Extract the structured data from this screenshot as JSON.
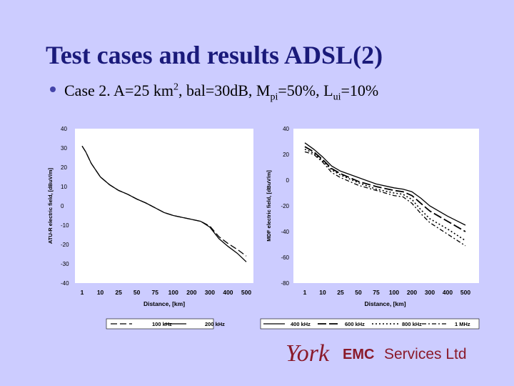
{
  "slide": {
    "title": "Test cases and results ADSL(2)",
    "bullet": {
      "p1": "Case 2. A=25 km",
      "sup1": "2",
      "p2": ", bal=30dB, M",
      "sub1": "pi",
      "p3": "=50%, L",
      "sub2": "ui",
      "p4": "=10%"
    }
  },
  "logo": {
    "york": "York",
    "emc": "EMC",
    "services": "Services Ltd",
    "color": "#8a1a2a"
  },
  "chart_data": [
    {
      "type": "line",
      "title": "",
      "xlabel": "Distance, [km]",
      "ylabel": "ATU-R electric field, [dBuV/m]",
      "ylim": [
        -40,
        40
      ],
      "yticks": [
        40,
        30,
        20,
        10,
        0,
        -10,
        -20,
        -30,
        -40
      ],
      "categories": [
        "1",
        "10",
        "25",
        "50",
        "75",
        "100",
        "200",
        "300",
        "400",
        "500"
      ],
      "grid": false,
      "legend_position": "bottom",
      "series": [
        {
          "name": "100 kHz",
          "style": "dashed",
          "x": [
            0,
            0.2,
            0.5,
            1,
            1.5,
            2,
            2.5,
            3,
            3.5,
            4,
            4.5,
            5,
            5.5,
            6,
            6.5,
            7,
            7.5,
            8,
            8.5,
            9
          ],
          "values": [
            31,
            28,
            22,
            15,
            11,
            8,
            6,
            3.5,
            1.5,
            -1,
            -3.5,
            -5,
            -6,
            -7,
            -8,
            -10.5,
            -16,
            -19.5,
            -22.5,
            -26
          ]
        },
        {
          "name": "200 kHz",
          "style": "solid",
          "x": [
            0,
            0.2,
            0.5,
            1,
            1.5,
            2,
            2.5,
            3,
            3.5,
            4,
            4.5,
            5,
            5.5,
            6,
            6.5,
            7,
            7.5,
            8,
            8.5,
            9
          ],
          "values": [
            31,
            28,
            22,
            15,
            11,
            8,
            6,
            3.5,
            1.5,
            -1,
            -3.5,
            -5,
            -6,
            -7,
            -8,
            -11,
            -17,
            -21,
            -24.5,
            -29
          ]
        }
      ]
    },
    {
      "type": "line",
      "title": "",
      "xlabel": "Distance, [km]",
      "ylabel": "MDF electric field, [dBuV/m]",
      "ylim": [
        -80,
        40
      ],
      "yticks": [
        40,
        20,
        0,
        -20,
        -40,
        -60,
        -80
      ],
      "categories": [
        "1",
        "10",
        "25",
        "50",
        "75",
        "100",
        "200",
        "300",
        "400",
        "500"
      ],
      "grid": false,
      "legend_position": "bottom",
      "series": [
        {
          "name": "400 kHz",
          "style": "solid",
          "x": [
            0,
            0.5,
            1,
            1.5,
            2,
            3,
            4,
            5,
            5.5,
            6,
            6.5,
            7,
            8,
            9
          ],
          "values": [
            29,
            24,
            18,
            11,
            7,
            2,
            -3,
            -6,
            -7,
            -9,
            -14,
            -20,
            -28,
            -35
          ]
        },
        {
          "name": "600 kHz",
          "style": "long-dash",
          "x": [
            0,
            0.5,
            1,
            1.5,
            2,
            3,
            4,
            5,
            5.5,
            6,
            6.5,
            7,
            8,
            9
          ],
          "values": [
            26,
            22,
            16,
            9,
            5,
            -1,
            -5,
            -8,
            -9,
            -12,
            -18,
            -24,
            -32,
            -40
          ]
        },
        {
          "name": "800 kHz",
          "style": "dotted",
          "x": [
            0,
            0.5,
            1,
            1.5,
            2,
            3,
            4,
            5,
            5.5,
            6,
            6.5,
            7,
            8,
            9
          ],
          "values": [
            24,
            21,
            15,
            8,
            4,
            -2,
            -7,
            -10,
            -11,
            -15,
            -23,
            -30,
            -38,
            -47
          ]
        },
        {
          "name": "1 MHz",
          "style": "dash-dot",
          "x": [
            0,
            0.5,
            1,
            1.5,
            2,
            3,
            4,
            5,
            5.5,
            6,
            6.5,
            7,
            8,
            9
          ],
          "values": [
            22,
            20,
            14,
            6,
            2,
            -4,
            -8,
            -12,
            -13,
            -18,
            -26,
            -33,
            -42,
            -51
          ]
        }
      ]
    }
  ]
}
